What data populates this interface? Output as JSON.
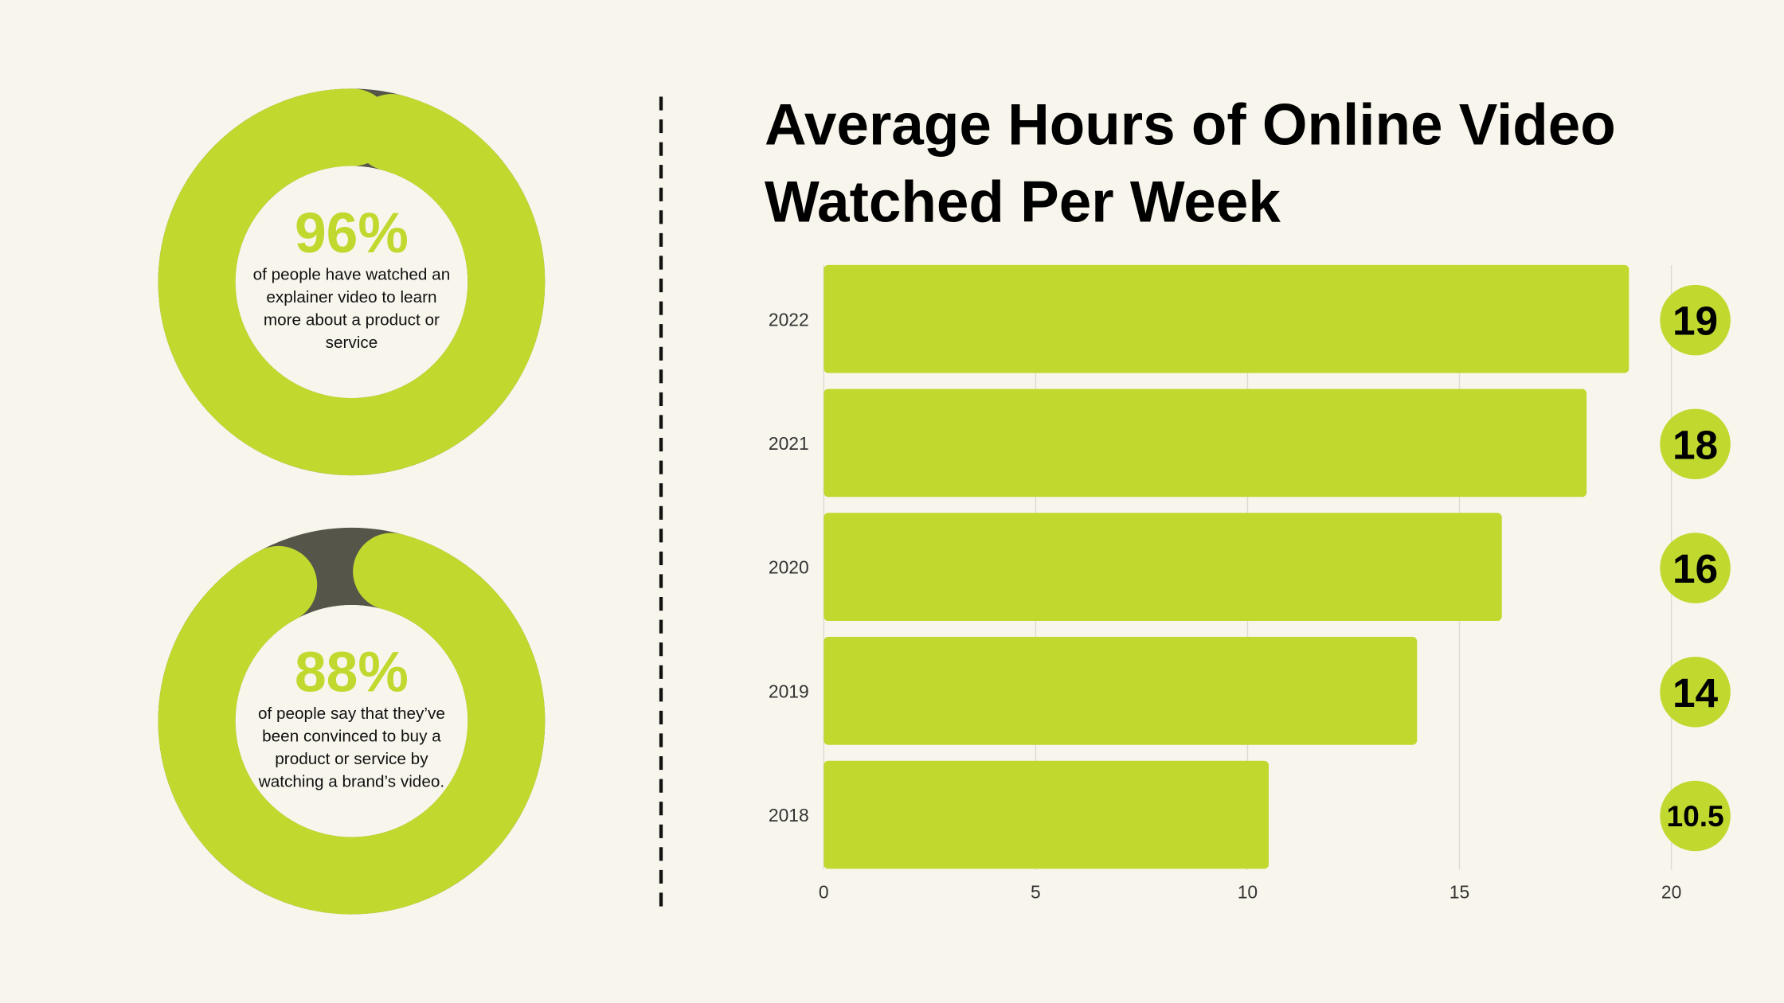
{
  "chart_data": [
    {
      "type": "donut",
      "values": [
        96
      ],
      "value_labels": [
        "96%"
      ],
      "description": "of people have watched an explainer video to learn more about a product or service",
      "color": "#c1d82f",
      "track_color": "#55554a"
    },
    {
      "type": "donut",
      "values": [
        88
      ],
      "value_labels": [
        "88%"
      ],
      "description": "of people say that they’ve been convinced to buy a product or service by watching a brand’s video.",
      "color": "#c1d82f",
      "track_color": "#55554a"
    },
    {
      "type": "bar",
      "orientation": "horizontal",
      "title": "Average Hours of Online Video Watched Per Week",
      "categories": [
        "2022",
        "2021",
        "2020",
        "2019",
        "2018"
      ],
      "values": [
        19,
        18,
        16,
        14,
        10.5
      ],
      "xlim": [
        0,
        20
      ],
      "xticks": [
        0,
        5,
        10,
        15,
        20
      ],
      "grid": true,
      "color": "#c1d82f"
    }
  ]
}
